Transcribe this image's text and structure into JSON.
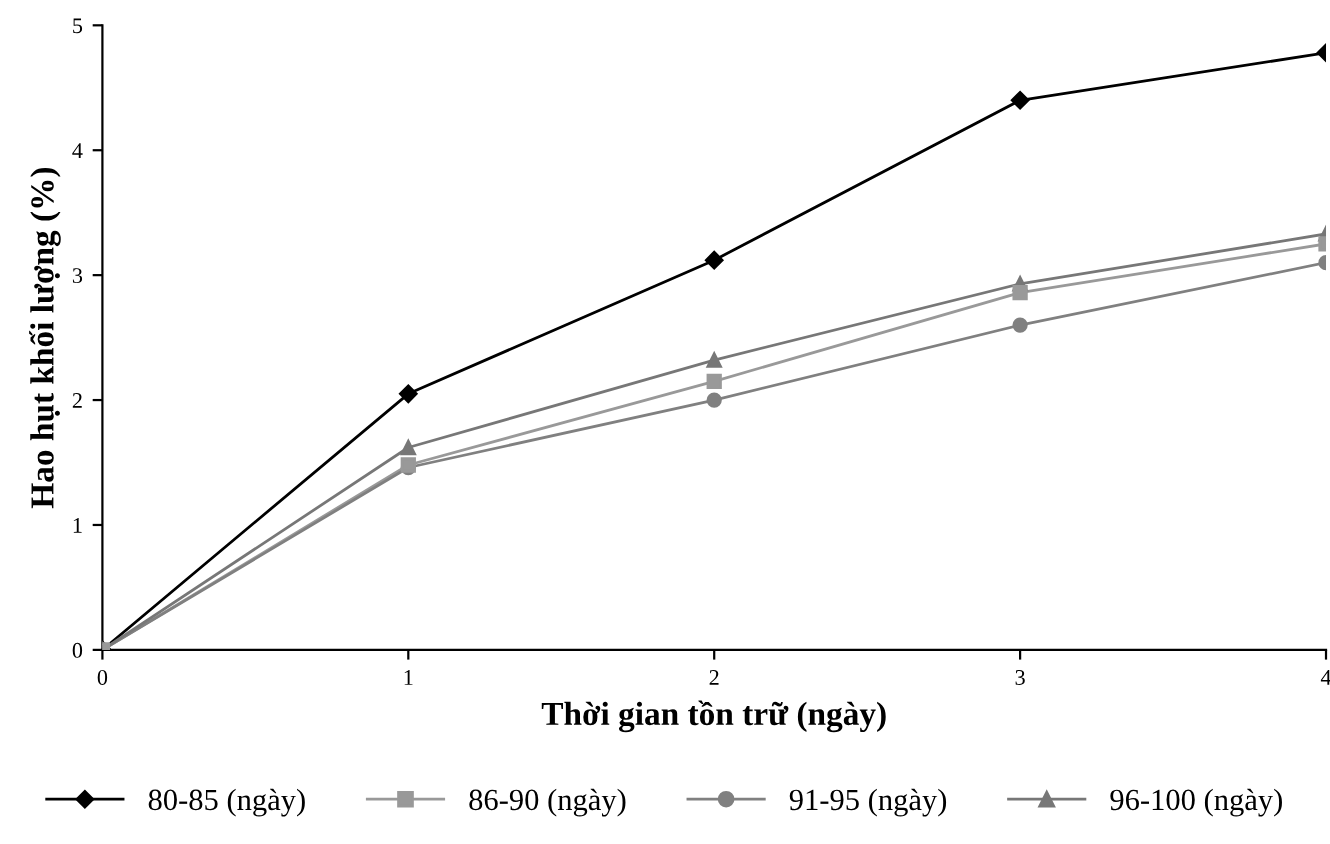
{
  "chart_data": {
    "type": "line",
    "xlabel": "Thời gian tồn trữ (ngày)",
    "ylabel": "Hao hụt khối lượng (%)",
    "x": [
      0,
      1,
      2,
      3,
      4
    ],
    "xlim": [
      0,
      4
    ],
    "xticks": [
      0,
      1,
      2,
      3,
      4
    ],
    "ylim": [
      0,
      5
    ],
    "yticks": [
      0,
      1,
      2,
      3,
      4,
      5
    ],
    "grid": false,
    "legend": "bottom",
    "series": [
      {
        "name": "80-85 (ngày)",
        "color": "#000000",
        "marker": "diamond",
        "values": [
          0,
          2.05,
          3.12,
          4.4,
          4.78
        ]
      },
      {
        "name": "86-90 (ngày)",
        "color": "#999999",
        "marker": "square",
        "values": [
          0,
          1.48,
          2.15,
          2.86,
          3.25
        ]
      },
      {
        "name": "91-95 (ngày)",
        "color": "#808080",
        "marker": "circle",
        "values": [
          0,
          1.46,
          2.0,
          2.6,
          3.1
        ]
      },
      {
        "name": "96-100 (ngày)",
        "color": "#777777",
        "marker": "triangle",
        "values": [
          0,
          1.62,
          2.32,
          2.93,
          3.33
        ]
      }
    ]
  }
}
